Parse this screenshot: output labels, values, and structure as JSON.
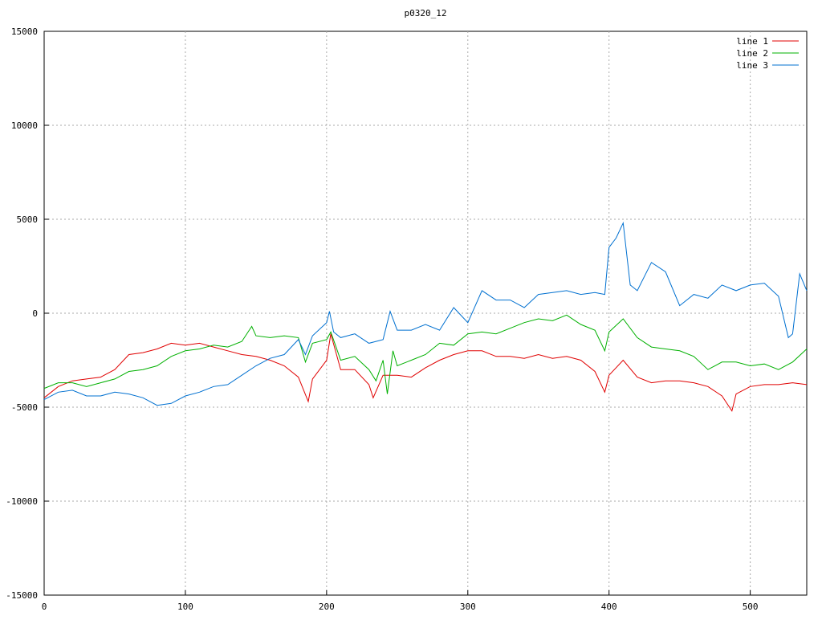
{
  "chart_data": {
    "type": "line",
    "title": "p0320_12",
    "xlim": [
      0,
      540
    ],
    "xticks": [
      0,
      100,
      200,
      300,
      400,
      500
    ],
    "ylim": [
      -15000,
      15000
    ],
    "yticks": [
      -15000,
      -10000,
      -5000,
      0,
      5000,
      10000,
      15000
    ],
    "grid": true,
    "legend": "top-right",
    "series": [
      {
        "name": "line 1",
        "color": "#e00000",
        "x": [
          0,
          10,
          20,
          30,
          40,
          50,
          60,
          70,
          80,
          90,
          100,
          110,
          120,
          130,
          140,
          150,
          160,
          170,
          180,
          187,
          190,
          200,
          203,
          210,
          220,
          230,
          233,
          240,
          250,
          260,
          270,
          280,
          290,
          300,
          310,
          320,
          330,
          340,
          350,
          360,
          370,
          380,
          390,
          397,
          400,
          410,
          420,
          430,
          440,
          450,
          460,
          470,
          480,
          487,
          490,
          500,
          510,
          520,
          530,
          540
        ],
        "values": [
          -4500,
          -3900,
          -3600,
          -3500,
          -3400,
          -3000,
          -2200,
          -2100,
          -1900,
          -1600,
          -1700,
          -1600,
          -1800,
          -2000,
          -2200,
          -2300,
          -2500,
          -2800,
          -3400,
          -4700,
          -3500,
          -2500,
          -1100,
          -3000,
          -3000,
          -3800,
          -4500,
          -3300,
          -3300,
          -3400,
          -2900,
          -2500,
          -2200,
          -2000,
          -2000,
          -2300,
          -2300,
          -2400,
          -2200,
          -2400,
          -2300,
          -2500,
          -3100,
          -4200,
          -3300,
          -2500,
          -3400,
          -3700,
          -3600,
          -3600,
          -3700,
          -3900,
          -4400,
          -5200,
          -4300,
          -3900,
          -3800,
          -3800,
          -3700,
          -3800
        ]
      },
      {
        "name": "line 2",
        "color": "#00b000",
        "x": [
          0,
          10,
          20,
          30,
          40,
          50,
          60,
          70,
          80,
          90,
          100,
          110,
          120,
          130,
          140,
          147,
          150,
          160,
          170,
          180,
          185,
          190,
          200,
          203,
          210,
          220,
          230,
          235,
          240,
          243,
          247,
          250,
          260,
          270,
          280,
          290,
          300,
          310,
          320,
          330,
          340,
          350,
          360,
          370,
          380,
          390,
          397,
          400,
          410,
          420,
          430,
          440,
          450,
          460,
          470,
          480,
          490,
          500,
          510,
          520,
          530,
          540
        ],
        "values": [
          -4000,
          -3700,
          -3700,
          -3900,
          -3700,
          -3500,
          -3100,
          -3000,
          -2800,
          -2300,
          -2000,
          -1900,
          -1700,
          -1800,
          -1500,
          -700,
          -1200,
          -1300,
          -1200,
          -1300,
          -2600,
          -1600,
          -1400,
          -1000,
          -2500,
          -2300,
          -3000,
          -3600,
          -2500,
          -4300,
          -2000,
          -2800,
          -2500,
          -2200,
          -1600,
          -1700,
          -1100,
          -1000,
          -1100,
          -800,
          -500,
          -300,
          -400,
          -100,
          -600,
          -900,
          -2000,
          -1000,
          -300,
          -1300,
          -1800,
          -1900,
          -2000,
          -2300,
          -3000,
          -2600,
          -2600,
          -2800,
          -2700,
          -3000,
          -2600,
          -1900
        ]
      },
      {
        "name": "line 3",
        "color": "#0070d0",
        "x": [
          0,
          10,
          20,
          30,
          40,
          50,
          60,
          70,
          80,
          90,
          100,
          110,
          120,
          130,
          140,
          150,
          160,
          170,
          180,
          185,
          190,
          200,
          202,
          205,
          210,
          220,
          230,
          240,
          245,
          250,
          260,
          270,
          280,
          290,
          300,
          310,
          320,
          330,
          340,
          350,
          360,
          370,
          380,
          390,
          397,
          400,
          405,
          410,
          415,
          420,
          430,
          440,
          450,
          460,
          470,
          480,
          490,
          500,
          510,
          520,
          527,
          530,
          535,
          540
        ],
        "values": [
          -4600,
          -4200,
          -4100,
          -4400,
          -4400,
          -4200,
          -4300,
          -4500,
          -4900,
          -4800,
          -4400,
          -4200,
          -3900,
          -3800,
          -3300,
          -2800,
          -2400,
          -2200,
          -1400,
          -2200,
          -1200,
          -500,
          100,
          -1000,
          -1300,
          -1100,
          -1600,
          -1400,
          100,
          -900,
          -900,
          -600,
          -900,
          300,
          -500,
          1200,
          700,
          700,
          300,
          1000,
          1100,
          1200,
          1000,
          1100,
          1000,
          3500,
          4000,
          4800,
          1500,
          1200,
          2700,
          2200,
          400,
          1000,
          800,
          1500,
          1200,
          1500,
          1600,
          900,
          -1300,
          -1100,
          2100,
          1200
        ]
      }
    ]
  }
}
